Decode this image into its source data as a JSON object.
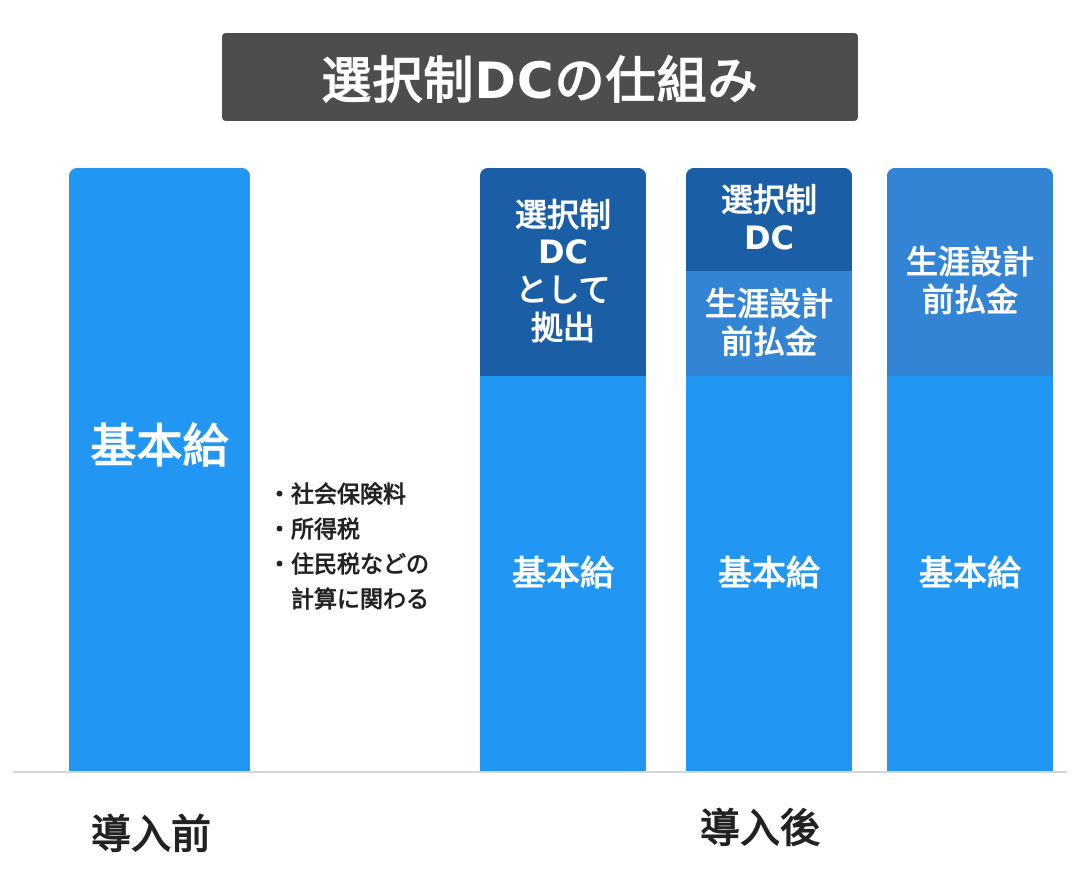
{
  "title": "選択制DCの仕組み",
  "colors": {
    "title_bg": "#4d4d4d",
    "base_blue": "#2196f3",
    "dark_blue": "#1a5ea6",
    "mid_blue": "#3384d4",
    "text_white": "#ffffff",
    "text_dark": "#222222"
  },
  "before": {
    "column": {
      "label": "基本給"
    },
    "notes": [
      "・社会保険料",
      "・所得税",
      "・住民税などの",
      "　計算に関わる"
    ],
    "label": "導入前"
  },
  "after": {
    "label": "導入後",
    "columns": [
      {
        "top_label": [
          "選択制",
          "DC",
          "として",
          "拠出"
        ],
        "base_label": "基本給"
      },
      {
        "top_label": [
          "選択制",
          "DC"
        ],
        "mid_label": [
          "生涯設計",
          "前払金"
        ],
        "base_label": "基本給"
      },
      {
        "top_label": [
          "生涯設計",
          "前払金"
        ],
        "base_label": "基本給"
      }
    ]
  }
}
